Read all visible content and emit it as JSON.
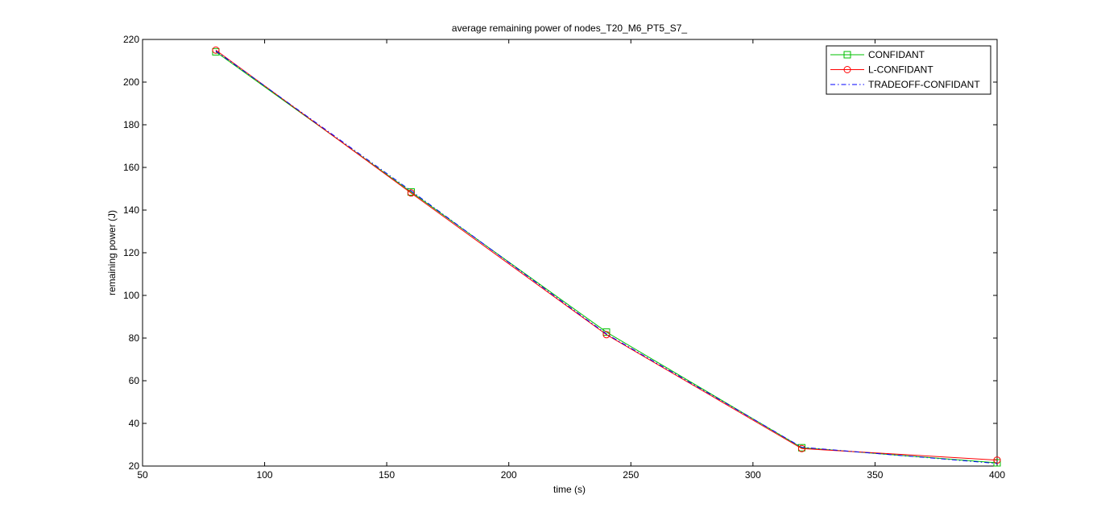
{
  "chart_data": {
    "type": "line",
    "title": "average remaining power of nodes_T20_M6_PT5_S7_",
    "xlabel": "time (s)",
    "ylabel": "remaining power (J)",
    "xlim": [
      50,
      400
    ],
    "ylim": [
      20,
      220
    ],
    "xticks": [
      50,
      100,
      150,
      200,
      250,
      300,
      350,
      400
    ],
    "yticks": [
      20,
      40,
      60,
      80,
      100,
      120,
      140,
      160,
      180,
      200,
      220
    ],
    "grid": false,
    "legend_position": "top-right",
    "x": [
      80,
      160,
      240,
      320,
      400
    ],
    "series": [
      {
        "name": "CONFIDANT",
        "values": [
          214.2,
          148.5,
          82.8,
          28.6,
          21.5
        ],
        "color": "#00c000",
        "marker": "square",
        "dash": "solid"
      },
      {
        "name": "L-CONFIDANT",
        "values": [
          215.0,
          148.0,
          81.6,
          28.2,
          22.8
        ],
        "color": "#ff0000",
        "marker": "circle",
        "dash": "solid"
      },
      {
        "name": "TRADEOFF-CONFIDANT",
        "values": [
          214.6,
          149.0,
          81.9,
          28.8,
          21.2
        ],
        "color": "#0000ff",
        "marker": "none",
        "dash": "dashdot"
      }
    ]
  }
}
